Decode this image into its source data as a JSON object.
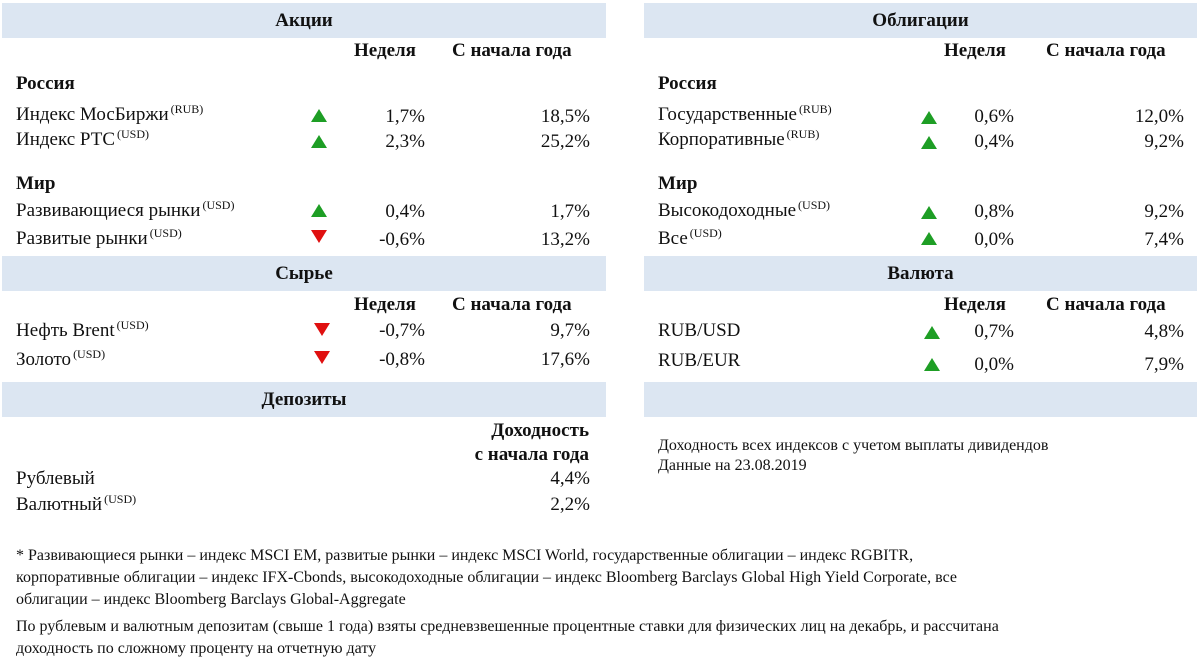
{
  "stocks": {
    "title": "Акции",
    "col_week": "Неделя",
    "col_ytd": "С начала года",
    "russia_title": "Россия",
    "world_title": "Мир",
    "rows": [
      {
        "label": "Индекс МосБиржи",
        "tag": "(RUB)",
        "direction": "up",
        "week": "1,7%",
        "ytd": "18,5%"
      },
      {
        "label": "Индекс РТС",
        "tag": "(USD)",
        "direction": "up",
        "week": "2,3%",
        "ytd": "25,2%"
      },
      {
        "label": "Развивающиеся рынки",
        "tag": "(USD)",
        "direction": "up",
        "week": "0,4%",
        "ytd": "1,7%"
      },
      {
        "label": "Развитые рынки",
        "tag": "(USD)",
        "direction": "down",
        "week": "-0,6%",
        "ytd": "13,2%"
      }
    ]
  },
  "bonds": {
    "title": "Облигации",
    "col_week": "Неделя",
    "col_ytd": "С начала года",
    "russia_title": "Россия",
    "world_title": "Мир",
    "rows": [
      {
        "label": "Государственные",
        "tag": "(RUB)",
        "direction": "up",
        "week": "0,6%",
        "ytd": "12,0%"
      },
      {
        "label": "Корпоративные",
        "tag": "(RUB)",
        "direction": "up",
        "week": "0,4%",
        "ytd": "9,2%"
      },
      {
        "label": "Высокодоходные",
        "tag": "(USD)",
        "direction": "up",
        "week": "0,8%",
        "ytd": "9,2%"
      },
      {
        "label": "Все",
        "tag": "(USD)",
        "direction": "up",
        "week": "0,0%",
        "ytd": "7,4%"
      }
    ]
  },
  "commodities": {
    "title": "Сырье",
    "col_week": "Неделя",
    "col_ytd": "С начала года",
    "rows": [
      {
        "label": "Нефть Brent",
        "tag": "(USD)",
        "direction": "down",
        "week": "-0,7%",
        "ytd": "9,7%"
      },
      {
        "label": "Золото",
        "tag": "(USD)",
        "direction": "down",
        "week": "-0,8%",
        "ytd": "17,6%"
      }
    ]
  },
  "currency": {
    "title": "Валюта",
    "col_week": "Неделя",
    "col_ytd": "С начала года",
    "rows": [
      {
        "label": "RUB/USD",
        "direction": "up",
        "week": "0,7%",
        "ytd": "4,8%"
      },
      {
        "label": "RUB/EUR",
        "direction": "up",
        "week": "0,0%",
        "ytd": "7,9%"
      }
    ]
  },
  "deposits": {
    "title": "Депозиты",
    "col_line1": "Доходность",
    "col_line2": "с начала года",
    "rows": [
      {
        "label": "Рублевый",
        "tag": "",
        "value": "4,4%"
      },
      {
        "label": "Валютный",
        "tag": "(USD)",
        "value": "2,2%"
      }
    ]
  },
  "notes": {
    "dividends": "Доходность всех индексов с учетом выплаты дивидендов",
    "date": "Данные на 23.08.2019"
  },
  "footnotes": {
    "indices_line1": "* Развивающиеся рынки – индекс MSCI EM, развитые рынки – индекс MSCI World, государственные облигации – индекс RGBITR,",
    "indices_line2": "корпоративные облигации – индекс IFX-Cbonds, высокодоходные облигации – индекс Bloomberg Barclays Global High Yield Corporate, все",
    "indices_line3": "облигации – индекс Bloomberg Barclays Global-Aggregate",
    "deposits_line1": "По рублевым и валютным депозитам (свыше 1 года) взяты средневзвешенные процентные ставки для физических лиц на декабрь, и рассчитана",
    "deposits_line2": "доходность по сложному проценту на отчетную дату"
  },
  "colors": {
    "header_bg": "#dce6f2",
    "up_arrow": "#1e9e25",
    "down_arrow": "#e01010"
  }
}
